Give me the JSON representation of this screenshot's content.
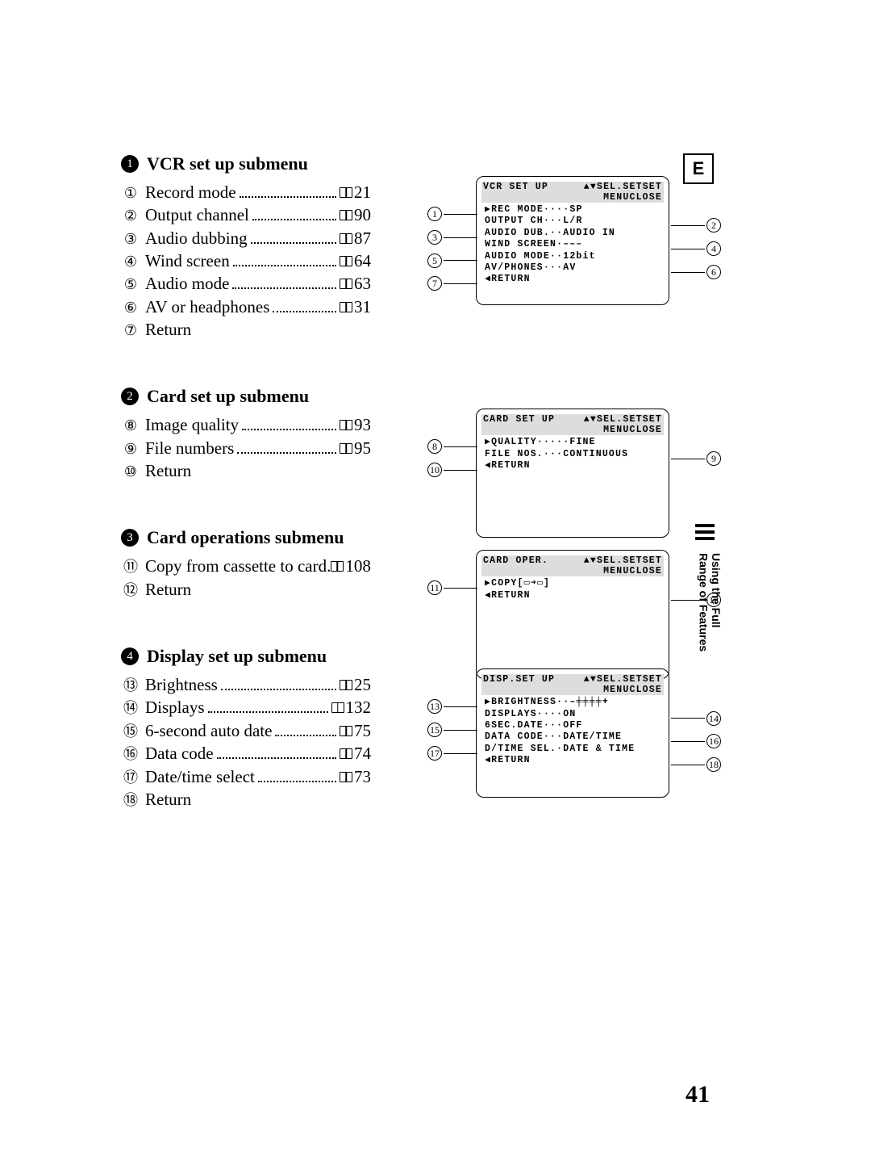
{
  "page_number": "41",
  "corner_letter": "E",
  "side_label": {
    "line1": "Using the Full",
    "line2": "Range of Features"
  },
  "sections": [
    {
      "bullet": "1",
      "title": "VCR set up submenu",
      "items": [
        {
          "n": "①",
          "label": "Record mode",
          "page": "21"
        },
        {
          "n": "②",
          "label": "Output channel",
          "page": "90"
        },
        {
          "n": "③",
          "label": "Audio dubbing",
          "page": "87"
        },
        {
          "n": "④",
          "label": "Wind screen",
          "page": "64"
        },
        {
          "n": "⑤",
          "label": "Audio mode",
          "page": "63"
        },
        {
          "n": "⑥",
          "label": "AV or headphones",
          "page": "31"
        },
        {
          "n": "⑦",
          "label": "Return"
        }
      ],
      "osd": {
        "head_left": "VCR SET UP",
        "head_right": "▲▼SEL.SETSET",
        "sub": "MENUCLOSE",
        "lines": [
          "▶REC MODE····SP",
          " OUTPUT CH···L/R",
          " AUDIO DUB.··AUDIO IN",
          " WIND SCREEN·–––",
          " AUDIO MODE··12bit",
          " AV/PHONES···AV",
          " ◀RETURN"
        ],
        "left_callouts": [
          {
            "n": "①",
            "row": 0
          },
          {
            "n": "③",
            "row": 2
          },
          {
            "n": "⑤",
            "row": 4
          },
          {
            "n": "⑦",
            "row": 6
          }
        ],
        "right_callouts": [
          {
            "n": "②",
            "row": 1
          },
          {
            "n": "④",
            "row": 3
          },
          {
            "n": "⑥",
            "row": 5
          }
        ]
      }
    },
    {
      "bullet": "2",
      "title": "Card set up submenu",
      "items": [
        {
          "n": "⑧",
          "label": "Image quality",
          "page": "93"
        },
        {
          "n": "⑨",
          "label": "File numbers",
          "page": "95"
        },
        {
          "n": "⑩",
          "label": "Return"
        }
      ],
      "osd": {
        "head_left": "CARD SET UP",
        "head_right": "▲▼SEL.SETSET",
        "sub": "MENUCLOSE",
        "lines": [
          "▶QUALITY·····FINE",
          " FILE NOS.···CONTINUOUS",
          " ◀RETURN"
        ],
        "left_callouts": [
          {
            "n": "⑧",
            "row": 0
          },
          {
            "n": "⑩",
            "row": 2
          }
        ],
        "right_callouts": [
          {
            "n": "⑨",
            "row": 1
          }
        ]
      }
    },
    {
      "bullet": "3",
      "title": "Card operations submenu",
      "items": [
        {
          "n": "⑪",
          "label": "Copy from cassette to card",
          "page": "108",
          "sepdot": true
        },
        {
          "n": "⑫",
          "label": "Return"
        }
      ],
      "osd": {
        "head_left": "CARD OPER.",
        "head_right": "▲▼SEL.SETSET",
        "sub": "MENUCLOSE",
        "lines": [
          "▶COPY[▭➜▭]",
          " ◀RETURN"
        ],
        "left_callouts": [
          {
            "n": "⑪",
            "row": 0
          }
        ],
        "right_callouts": [
          {
            "n": "⑫",
            "row": 1
          }
        ]
      }
    },
    {
      "bullet": "4",
      "title": "Display set up submenu",
      "items": [
        {
          "n": "⑬",
          "label": "Brightness",
          "page": "25"
        },
        {
          "n": "⑭",
          "label": "Displays",
          "page": "132"
        },
        {
          "n": "⑮",
          "label": "6-second auto date",
          "page": "75"
        },
        {
          "n": "⑯",
          "label": "Data code",
          "page": "74"
        },
        {
          "n": "⑰",
          "label": "Date/time select",
          "page": "73"
        },
        {
          "n": "⑱",
          "label": "Return"
        }
      ],
      "osd": {
        "head_left": "DISP.SET UP",
        "head_right": "▲▼SEL.SETSET",
        "sub": "MENUCLOSE",
        "lines": [
          "▶BRIGHTNESS··–╪╪╪╪+",
          " DISPLAYS····ON",
          " 6SEC.DATE···OFF",
          " DATA CODE···DATE/TIME",
          " D/TIME SEL.·DATE & TIME",
          " ◀RETURN"
        ],
        "left_callouts": [
          {
            "n": "⑬",
            "row": 0
          },
          {
            "n": "⑮",
            "row": 2
          },
          {
            "n": "⑰",
            "row": 4
          }
        ],
        "right_callouts": [
          {
            "n": "⑭",
            "row": 1
          },
          {
            "n": "⑯",
            "row": 3
          },
          {
            "n": "⑱",
            "row": 5
          }
        ]
      }
    }
  ]
}
